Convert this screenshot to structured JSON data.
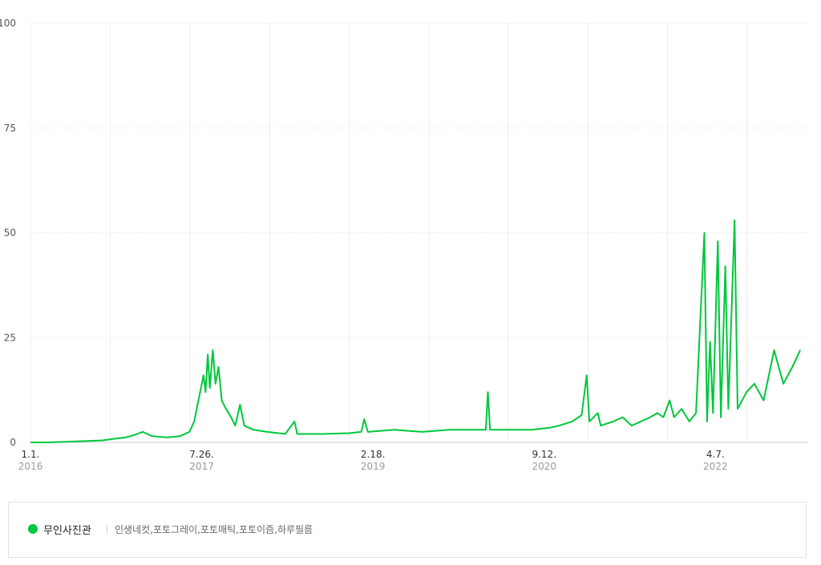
{
  "chart_data": {
    "type": "line",
    "ylim": [
      0,
      100
    ],
    "y_ticks": [
      {
        "value": 0,
        "label": "0"
      },
      {
        "value": 25,
        "label": "25"
      },
      {
        "value": 50,
        "label": "50"
      },
      {
        "value": 75,
        "label": "75"
      },
      {
        "value": 100,
        "label": "100"
      }
    ],
    "xlim": [
      "2016-01-01",
      "2023-01-15"
    ],
    "x_gridlines": [
      "2016-01-01",
      "2016-09-24",
      "2017-06-17",
      "2018-03-10",
      "2018-12-01",
      "2019-08-24",
      "2020-05-15",
      "2021-02-05",
      "2021-10-29",
      "2022-07-21"
    ],
    "x_ticks": [
      {
        "date": "2016-01-01",
        "label": "1.1.",
        "year": "2016"
      },
      {
        "date": "2017-07-26",
        "label": "7.26.",
        "year": "2017"
      },
      {
        "date": "2019-02-18",
        "label": "2.18.",
        "year": "2019"
      },
      {
        "date": "2020-09-12",
        "label": "9.12.",
        "year": "2020"
      },
      {
        "date": "2022-04-07",
        "label": "4.7.",
        "year": "2022"
      }
    ],
    "grid": true,
    "legend_position": "bottom",
    "series": [
      {
        "name": "무인사진관",
        "keywords": "인생네컷,포토그레이,포토매틱,포토이즘,하루필름",
        "color": "#00c73c",
        "points": [
          [
            "2016-01-01",
            0
          ],
          [
            "2016-03-01",
            0
          ],
          [
            "2016-05-15",
            0.2
          ],
          [
            "2016-07-01",
            0.3
          ],
          [
            "2016-09-01",
            0.5
          ],
          [
            "2016-10-01",
            0.8
          ],
          [
            "2016-11-15",
            1.2
          ],
          [
            "2016-12-15",
            1.8
          ],
          [
            "2017-01-10",
            2.5
          ],
          [
            "2017-02-10",
            1.5
          ],
          [
            "2017-04-01",
            1.2
          ],
          [
            "2017-05-15",
            1.5
          ],
          [
            "2017-06-15",
            2.5
          ],
          [
            "2017-07-01",
            5
          ],
          [
            "2017-07-15",
            10
          ],
          [
            "2017-08-01",
            16
          ],
          [
            "2017-08-08",
            12
          ],
          [
            "2017-08-15",
            21
          ],
          [
            "2017-08-22",
            13
          ],
          [
            "2017-09-01",
            22
          ],
          [
            "2017-09-10",
            14
          ],
          [
            "2017-09-20",
            18
          ],
          [
            "2017-10-01",
            10
          ],
          [
            "2017-10-15",
            8
          ],
          [
            "2017-11-01",
            6
          ],
          [
            "2017-11-15",
            4
          ],
          [
            "2017-12-01",
            9
          ],
          [
            "2017-12-15",
            4
          ],
          [
            "2018-01-15",
            3
          ],
          [
            "2018-03-01",
            2.5
          ],
          [
            "2018-05-01",
            2
          ],
          [
            "2018-06-01",
            5
          ],
          [
            "2018-06-10",
            2
          ],
          [
            "2018-09-01",
            2
          ],
          [
            "2018-12-01",
            2.2
          ],
          [
            "2019-01-10",
            2.5
          ],
          [
            "2019-01-20",
            5.5
          ],
          [
            "2019-02-01",
            2.5
          ],
          [
            "2019-05-01",
            3
          ],
          [
            "2019-08-01",
            2.5
          ],
          [
            "2019-11-01",
            3
          ],
          [
            "2020-02-01",
            3
          ],
          [
            "2020-03-01",
            3
          ],
          [
            "2020-03-08",
            12
          ],
          [
            "2020-03-15",
            3
          ],
          [
            "2020-05-01",
            3
          ],
          [
            "2020-08-01",
            3
          ],
          [
            "2020-10-01",
            3.5
          ],
          [
            "2020-11-01",
            4
          ],
          [
            "2020-12-15",
            5
          ],
          [
            "2021-01-15",
            6.5
          ],
          [
            "2021-02-01",
            16
          ],
          [
            "2021-02-10",
            5
          ],
          [
            "2021-03-10",
            7
          ],
          [
            "2021-03-20",
            4
          ],
          [
            "2021-05-01",
            5
          ],
          [
            "2021-06-01",
            6
          ],
          [
            "2021-07-01",
            4
          ],
          [
            "2021-08-01",
            5
          ],
          [
            "2021-09-01",
            6
          ],
          [
            "2021-09-25",
            7
          ],
          [
            "2021-10-15",
            6
          ],
          [
            "2021-11-05",
            10
          ],
          [
            "2021-11-20",
            6
          ],
          [
            "2021-12-15",
            8
          ],
          [
            "2022-01-10",
            5
          ],
          [
            "2022-02-01",
            7
          ],
          [
            "2022-03-01",
            50
          ],
          [
            "2022-03-10",
            5
          ],
          [
            "2022-03-20",
            24
          ],
          [
            "2022-03-30",
            7
          ],
          [
            "2022-04-15",
            48
          ],
          [
            "2022-04-25",
            6
          ],
          [
            "2022-05-10",
            42
          ],
          [
            "2022-05-20",
            8
          ],
          [
            "2022-06-10",
            53
          ],
          [
            "2022-06-20",
            8
          ],
          [
            "2022-07-20",
            12
          ],
          [
            "2022-08-15",
            14
          ],
          [
            "2022-09-15",
            10
          ],
          [
            "2022-10-20",
            22
          ],
          [
            "2022-11-20",
            14
          ],
          [
            "2022-12-20",
            18
          ],
          [
            "2023-01-15",
            22
          ]
        ]
      }
    ]
  },
  "legend": {
    "name": "무인사진관",
    "keywords": "인생네컷,포토그레이,포토매틱,포토이즘,하루필름"
  }
}
